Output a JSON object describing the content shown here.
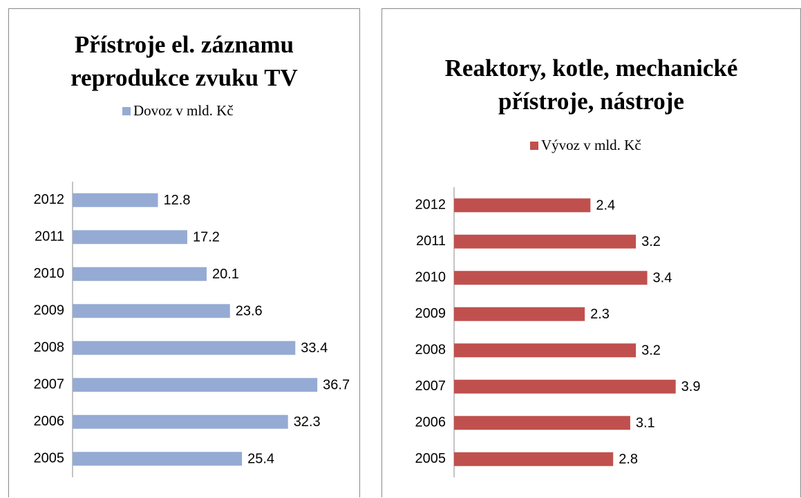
{
  "chart_data": [
    {
      "type": "bar",
      "orientation": "horizontal",
      "title": "Přístroje el. záznamu reprodukce zvuku TV",
      "categories": [
        "2005",
        "2006",
        "2007",
        "2008",
        "2009",
        "2010",
        "2011",
        "2012"
      ],
      "series": [
        {
          "name": "Dovoz v mld. Kč",
          "color": "#95abd4",
          "values": [
            25.4,
            32.3,
            36.7,
            33.4,
            23.6,
            20.1,
            17.2,
            12.8
          ]
        }
      ],
      "xlim": [
        0,
        40
      ]
    },
    {
      "type": "bar",
      "orientation": "horizontal",
      "title": "Reaktory, kotle, mechanické přístroje, nástroje",
      "categories": [
        "2005",
        "2006",
        "2007",
        "2008",
        "2009",
        "2010",
        "2011",
        "2012"
      ],
      "series": [
        {
          "name": "Vývoz v mld. Kč",
          "color": "#c0504d",
          "values": [
            2.8,
            3.1,
            3.9,
            3.2,
            2.3,
            3.4,
            3.2,
            2.4
          ]
        }
      ],
      "xlim": [
        0,
        4.5
      ]
    }
  ]
}
